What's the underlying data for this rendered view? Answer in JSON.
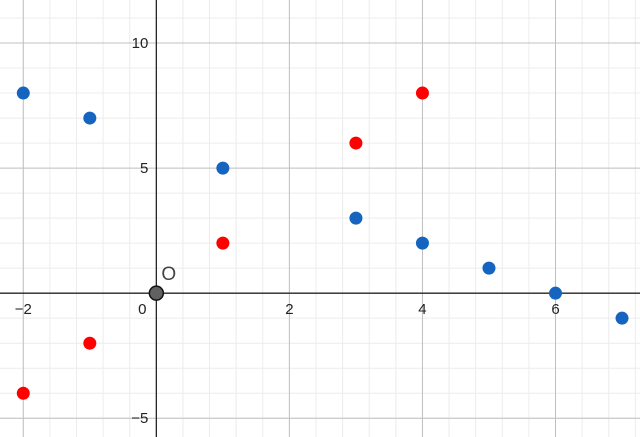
{
  "chart_data": {
    "type": "scatter",
    "xlim": [
      -2.35,
      7.27
    ],
    "ylim": [
      -5.75,
      11.72
    ],
    "grid": true,
    "major_x_step": 2,
    "major_y_step": 5,
    "minor_x_step": 0.4,
    "minor_y_step": 1,
    "x_ticks": [
      -2,
      0,
      2,
      4,
      6
    ],
    "y_ticks": [
      -5,
      5,
      10
    ],
    "x_tick_labels": [
      "−2",
      "0",
      "2",
      "4",
      "6"
    ],
    "y_tick_labels": [
      "−5",
      "5",
      "10"
    ],
    "origin_label": "O",
    "series": [
      {
        "color": "#1565c0",
        "points": [
          [
            -2,
            8
          ],
          [
            -1,
            7
          ],
          [
            1,
            5
          ],
          [
            3,
            3
          ],
          [
            4,
            2
          ],
          [
            5,
            1
          ],
          [
            6,
            0
          ],
          [
            7,
            -1
          ]
        ]
      },
      {
        "color": "#ff0000",
        "points": [
          [
            -2,
            -4
          ],
          [
            -1,
            -2
          ],
          [
            1,
            2
          ],
          [
            3,
            6
          ],
          [
            4,
            8
          ]
        ]
      }
    ],
    "origin_point": {
      "x": 0,
      "y": 0,
      "color": "#616161"
    }
  }
}
